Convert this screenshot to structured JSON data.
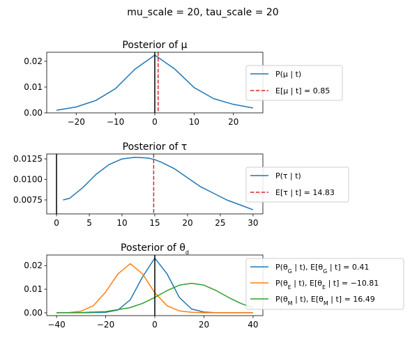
{
  "suptitle": "mu_scale = 20, tau_scale = 20",
  "chart_data": [
    {
      "type": "line",
      "title": "Posterior of μ",
      "xlim": [
        -27.5,
        27.5
      ],
      "ylim": [
        0,
        0.0235
      ],
      "xticks": [
        {
          "v": -20,
          "label": "−20"
        },
        {
          "v": -10,
          "label": "−10"
        },
        {
          "v": 0,
          "label": "0"
        },
        {
          "v": 10,
          "label": "10"
        },
        {
          "v": 20,
          "label": "20"
        }
      ],
      "yticks": [
        {
          "v": 0,
          "label": "0.00"
        },
        {
          "v": 0.01,
          "label": "0.01"
        },
        {
          "v": 0.02,
          "label": "0.02"
        }
      ],
      "series": [
        {
          "name": "P(μ | t)",
          "color": "#1f77b4",
          "x": [
            -25,
            -20,
            -15,
            -10,
            -5,
            0,
            5,
            10,
            15,
            20,
            25
          ],
          "y": [
            0.001,
            0.0023,
            0.0048,
            0.0094,
            0.017,
            0.0224,
            0.0171,
            0.0098,
            0.0055,
            0.0033,
            0.0019
          ]
        }
      ],
      "vlines": [
        {
          "x": 0,
          "color": "#000000",
          "style": "solid"
        },
        {
          "x": 0.85,
          "color": "#d62728",
          "style": "dashed",
          "name": "E[μ | t] = 0.85"
        }
      ]
    },
    {
      "type": "line",
      "title": "Posterior of τ",
      "xlim": [
        -1.5,
        31.5
      ],
      "ylim": [
        0.0058,
        0.0131
      ],
      "xticks": [
        {
          "v": 0,
          "label": "0"
        },
        {
          "v": 5,
          "label": "5"
        },
        {
          "v": 10,
          "label": "10"
        },
        {
          "v": 15,
          "label": "15"
        },
        {
          "v": 20,
          "label": "20"
        },
        {
          "v": 25,
          "label": "25"
        },
        {
          "v": 30,
          "label": "30"
        }
      ],
      "yticks": [
        {
          "v": 0.0075,
          "label": "0.0075"
        },
        {
          "v": 0.01,
          "label": "0.0100"
        },
        {
          "v": 0.0125,
          "label": "0.0125"
        }
      ],
      "series": [
        {
          "name": "P(τ | t)",
          "color": "#1f77b4",
          "x": [
            1,
            2,
            4,
            6,
            8,
            10,
            12,
            14,
            15,
            16,
            18,
            20,
            22,
            24,
            26,
            28,
            30
          ],
          "y": [
            0.0075,
            0.0077,
            0.009,
            0.0106,
            0.0118,
            0.0125,
            0.0127,
            0.0126,
            0.0124,
            0.0121,
            0.0113,
            0.0102,
            0.0091,
            0.0083,
            0.0075,
            0.0069,
            0.0063
          ]
        }
      ],
      "vlines": [
        {
          "x": 0,
          "color": "#000000",
          "style": "solid"
        },
        {
          "x": 14.83,
          "color": "#d62728",
          "style": "dashed",
          "name": "E[τ | t] = 14.83"
        }
      ]
    },
    {
      "type": "line",
      "title": "Posterior of θ_d",
      "xlim": [
        -44,
        44
      ],
      "ylim": [
        -0.0012,
        0.0245
      ],
      "xticks": [
        {
          "v": -40,
          "label": "−40"
        },
        {
          "v": -20,
          "label": "−20"
        },
        {
          "v": 0,
          "label": "0"
        },
        {
          "v": 20,
          "label": "20"
        },
        {
          "v": 40,
          "label": "40"
        }
      ],
      "yticks": [
        {
          "v": 0,
          "label": "0.00"
        },
        {
          "v": 0.01,
          "label": "0.01"
        },
        {
          "v": 0.02,
          "label": "0.02"
        }
      ],
      "series": [
        {
          "name": "P(θ_G | t),  E[θ_G | t] = 0.41",
          "color": "#1f77b4",
          "x": [
            -40,
            -30,
            -20,
            -15,
            -10,
            -5,
            0,
            5,
            10,
            15,
            20,
            25,
            30,
            40
          ],
          "y": [
            0.0,
            0.0,
            0.0002,
            0.0012,
            0.0055,
            0.0152,
            0.0232,
            0.0165,
            0.0065,
            0.0016,
            0.0003,
            0.0,
            0.0,
            0.0
          ]
        },
        {
          "name": "P(θ_E | t),  E[θ_E | t] = −10.81",
          "color": "#ff7f0e",
          "x": [
            -40,
            -35,
            -30,
            -25,
            -20,
            -15,
            -10,
            -5,
            0,
            5,
            10,
            15,
            20,
            30,
            40
          ],
          "y": [
            0.0,
            0.0001,
            0.0007,
            0.003,
            0.0088,
            0.0165,
            0.0208,
            0.0165,
            0.0085,
            0.003,
            0.0008,
            0.0002,
            0.0,
            0.0,
            0.0
          ]
        },
        {
          "name": "P(θ_M | t),  E[θ_M | t] = 16.49",
          "color": "#2ca02c",
          "x": [
            -40,
            -30,
            -20,
            -10,
            -5,
            0,
            5,
            10,
            15,
            20,
            25,
            30,
            35,
            40
          ],
          "y": [
            0.0,
            0.0001,
            0.0005,
            0.0022,
            0.004,
            0.0065,
            0.0094,
            0.0117,
            0.0125,
            0.0117,
            0.0094,
            0.0065,
            0.004,
            0.0021
          ]
        }
      ],
      "vlines": [
        {
          "x": 0,
          "color": "#000000",
          "style": "solid"
        }
      ]
    }
  ]
}
